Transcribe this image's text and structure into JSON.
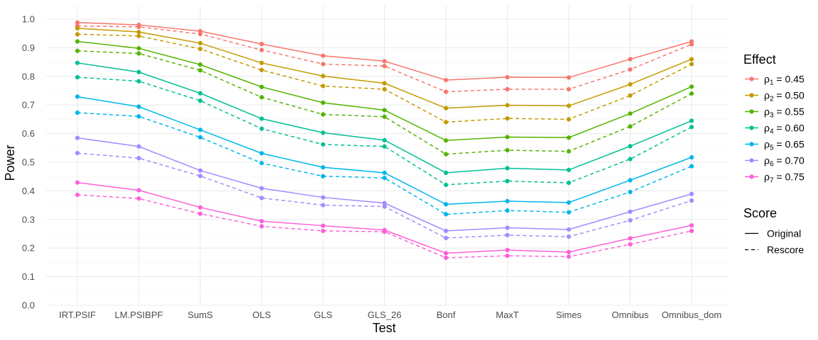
{
  "chart_data": {
    "type": "line",
    "xlabel": "Test",
    "ylabel": "Power",
    "ylim": [
      0,
      1.0
    ],
    "yticks": [
      "0.0",
      "0.1",
      "0.2",
      "0.3",
      "0.4",
      "0.5",
      "0.6",
      "0.7",
      "0.8",
      "0.9",
      "1.0"
    ],
    "categories": [
      "IRT.PSIF",
      "LM.PSIBPF",
      "SumS",
      "OLS",
      "GLS",
      "GLS_26",
      "Bonf",
      "MaxT",
      "Simes",
      "Omnibus",
      "Omnibus_dom"
    ],
    "effect_legend": {
      "title": "Effect",
      "entries": [
        {
          "rho": "ρ",
          "sub": "1",
          "label": " = 0.45",
          "color": "#F8766D"
        },
        {
          "rho": "ρ",
          "sub": "2",
          "label": " = 0.50",
          "color": "#C49A00"
        },
        {
          "rho": "ρ",
          "sub": "3",
          "label": " = 0.55",
          "color": "#53B400"
        },
        {
          "rho": "ρ",
          "sub": "4",
          "label": " = 0.60",
          "color": "#00C094"
        },
        {
          "rho": "ρ",
          "sub": "5",
          "label": " = 0.65",
          "color": "#00B6EB"
        },
        {
          "rho": "ρ",
          "sub": "6",
          "label": " = 0.70",
          "color": "#A58AFF"
        },
        {
          "rho": "ρ",
          "sub": "7",
          "label": " = 0.75",
          "color": "#FB61D7"
        }
      ]
    },
    "score_legend": {
      "title": "Score",
      "entries": [
        {
          "label": "Original",
          "linetype": "solid"
        },
        {
          "label": "Rescore",
          "linetype": "dashed"
        }
      ]
    },
    "series": [
      {
        "effect": 0,
        "score": "Original",
        "values": [
          0.988,
          0.98,
          0.958,
          0.913,
          0.872,
          0.853,
          0.787,
          0.797,
          0.796,
          0.86,
          0.922
        ]
      },
      {
        "effect": 0,
        "score": "Rescore",
        "values": [
          0.976,
          0.973,
          0.948,
          0.892,
          0.843,
          0.836,
          0.746,
          0.755,
          0.755,
          0.824,
          0.912
        ]
      },
      {
        "effect": 1,
        "score": "Original",
        "values": [
          0.968,
          0.955,
          0.916,
          0.847,
          0.801,
          0.776,
          0.689,
          0.699,
          0.697,
          0.772,
          0.86
        ]
      },
      {
        "effect": 1,
        "score": "Rescore",
        "values": [
          0.947,
          0.941,
          0.896,
          0.822,
          0.766,
          0.755,
          0.64,
          0.653,
          0.65,
          0.733,
          0.843
        ]
      },
      {
        "effect": 2,
        "score": "Original",
        "values": [
          0.922,
          0.898,
          0.841,
          0.763,
          0.708,
          0.682,
          0.576,
          0.588,
          0.586,
          0.67,
          0.764
        ]
      },
      {
        "effect": 2,
        "score": "Rescore",
        "values": [
          0.889,
          0.88,
          0.821,
          0.727,
          0.667,
          0.659,
          0.528,
          0.542,
          0.538,
          0.625,
          0.74
        ]
      },
      {
        "effect": 3,
        "score": "Original",
        "values": [
          0.847,
          0.815,
          0.741,
          0.652,
          0.603,
          0.577,
          0.463,
          0.479,
          0.473,
          0.556,
          0.645
        ]
      },
      {
        "effect": 3,
        "score": "Rescore",
        "values": [
          0.797,
          0.783,
          0.715,
          0.617,
          0.562,
          0.555,
          0.421,
          0.434,
          0.428,
          0.511,
          0.623
        ]
      },
      {
        "effect": 4,
        "score": "Original",
        "values": [
          0.729,
          0.694,
          0.613,
          0.531,
          0.482,
          0.463,
          0.353,
          0.364,
          0.359,
          0.437,
          0.517
        ]
      },
      {
        "effect": 4,
        "score": "Rescore",
        "values": [
          0.673,
          0.66,
          0.587,
          0.497,
          0.451,
          0.445,
          0.318,
          0.331,
          0.325,
          0.396,
          0.486
        ]
      },
      {
        "effect": 5,
        "score": "Original",
        "values": [
          0.585,
          0.555,
          0.471,
          0.409,
          0.377,
          0.357,
          0.26,
          0.271,
          0.265,
          0.327,
          0.389
        ]
      },
      {
        "effect": 5,
        "score": "Rescore",
        "values": [
          0.532,
          0.514,
          0.452,
          0.375,
          0.35,
          0.345,
          0.235,
          0.245,
          0.24,
          0.297,
          0.366
        ]
      },
      {
        "effect": 6,
        "score": "Original",
        "values": [
          0.429,
          0.402,
          0.342,
          0.294,
          0.278,
          0.263,
          0.182,
          0.193,
          0.186,
          0.234,
          0.279
        ]
      },
      {
        "effect": 6,
        "score": "Rescore",
        "values": [
          0.386,
          0.373,
          0.32,
          0.276,
          0.26,
          0.257,
          0.166,
          0.173,
          0.17,
          0.213,
          0.26
        ]
      }
    ]
  }
}
